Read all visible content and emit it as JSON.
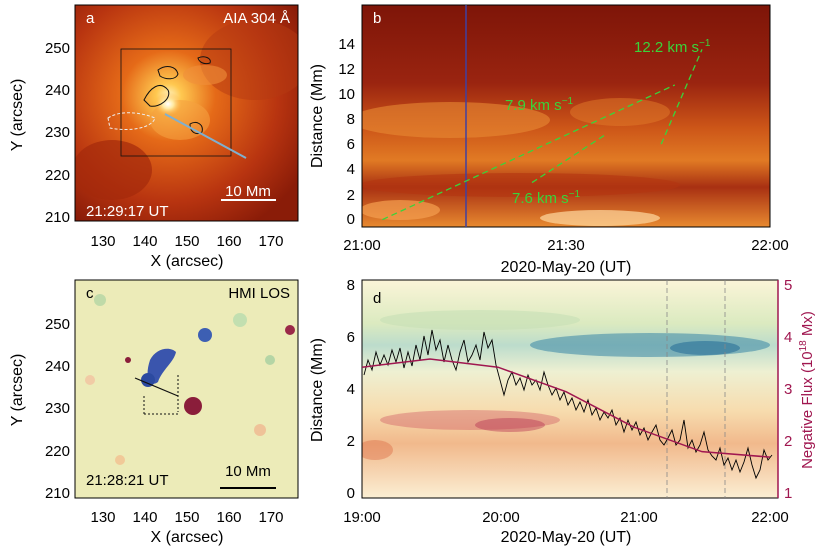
{
  "panel_a": {
    "letter": "a",
    "instrument": "AIA 304 Å",
    "time": "21:29:17 UT",
    "scale": "10 Mm",
    "xlabel": "X (arcsec)",
    "ylabel": "Y (arcsec)",
    "xticks": [
      "130",
      "140",
      "150",
      "160",
      "170"
    ],
    "yticks": [
      "210",
      "220",
      "230",
      "240",
      "250"
    ]
  },
  "panel_b": {
    "letter": "b",
    "ylabel": "Distance (Mm)",
    "xlabel": "2020-May-20 (UT)",
    "xticks": [
      "21:00",
      "21:30",
      "22:00"
    ],
    "yticks": [
      "0",
      "2",
      "4",
      "6",
      "8",
      "10",
      "12",
      "14"
    ],
    "speeds": [
      "12.2 km s",
      "7.9 km s",
      "7.6 km s"
    ],
    "speed_sup": "−1",
    "speed_color": "#3ad33a"
  },
  "panel_c": {
    "letter": "c",
    "instrument": "HMI LOS",
    "time": "21:28:21 UT",
    "scale": "10 Mm",
    "xlabel": "X (arcsec)",
    "ylabel": "Y (arcsec)",
    "xticks": [
      "130",
      "140",
      "150",
      "160",
      "170"
    ],
    "yticks": [
      "210",
      "220",
      "230",
      "240",
      "250"
    ]
  },
  "panel_d": {
    "letter": "d",
    "ylabel": "Distance (Mm)",
    "y2label_pre": "Negative Flux (10",
    "y2label_sup": "18",
    "y2label_post": " Mx)",
    "xlabel": "2020-May-20 (UT)",
    "xticks": [
      "19:00",
      "20:00",
      "21:00",
      "22:00"
    ],
    "yticks": [
      "0",
      "2",
      "4",
      "6",
      "8"
    ],
    "y2ticks": [
      "1",
      "2",
      "3",
      "4",
      "5"
    ],
    "flux_color": "#a01750"
  },
  "chart_data": [
    {
      "type": "line",
      "panel": "b",
      "xlim": [
        "21:00",
        "22:00"
      ],
      "ylim": [
        0,
        15
      ],
      "series": [
        {
          "name": "12.2 km s−1",
          "x": [
            "21:44",
            "21:50"
          ],
          "y": [
            5.6,
            12.0
          ]
        },
        {
          "name": "7.9 km s−1",
          "x": [
            "21:03",
            "21:46"
          ],
          "y": [
            0.5,
            9.6
          ]
        },
        {
          "name": "7.6 km s−1",
          "x": [
            "21:25",
            "21:36"
          ],
          "y": [
            3.0,
            6.3
          ]
        }
      ]
    },
    {
      "type": "line",
      "panel": "d",
      "xlim": [
        "19:00",
        "22:00"
      ],
      "ylim": [
        0,
        8
      ],
      "y2lim": [
        1,
        5
      ],
      "series": [
        {
          "name": "Negative Flux fit",
          "x": [
            "19:00",
            "19:30",
            "20:00",
            "20:30",
            "21:00",
            "21:30",
            "22:00"
          ],
          "y": [
            3.4,
            3.55,
            3.4,
            2.95,
            2.3,
            1.85,
            1.75
          ]
        }
      ]
    }
  ]
}
